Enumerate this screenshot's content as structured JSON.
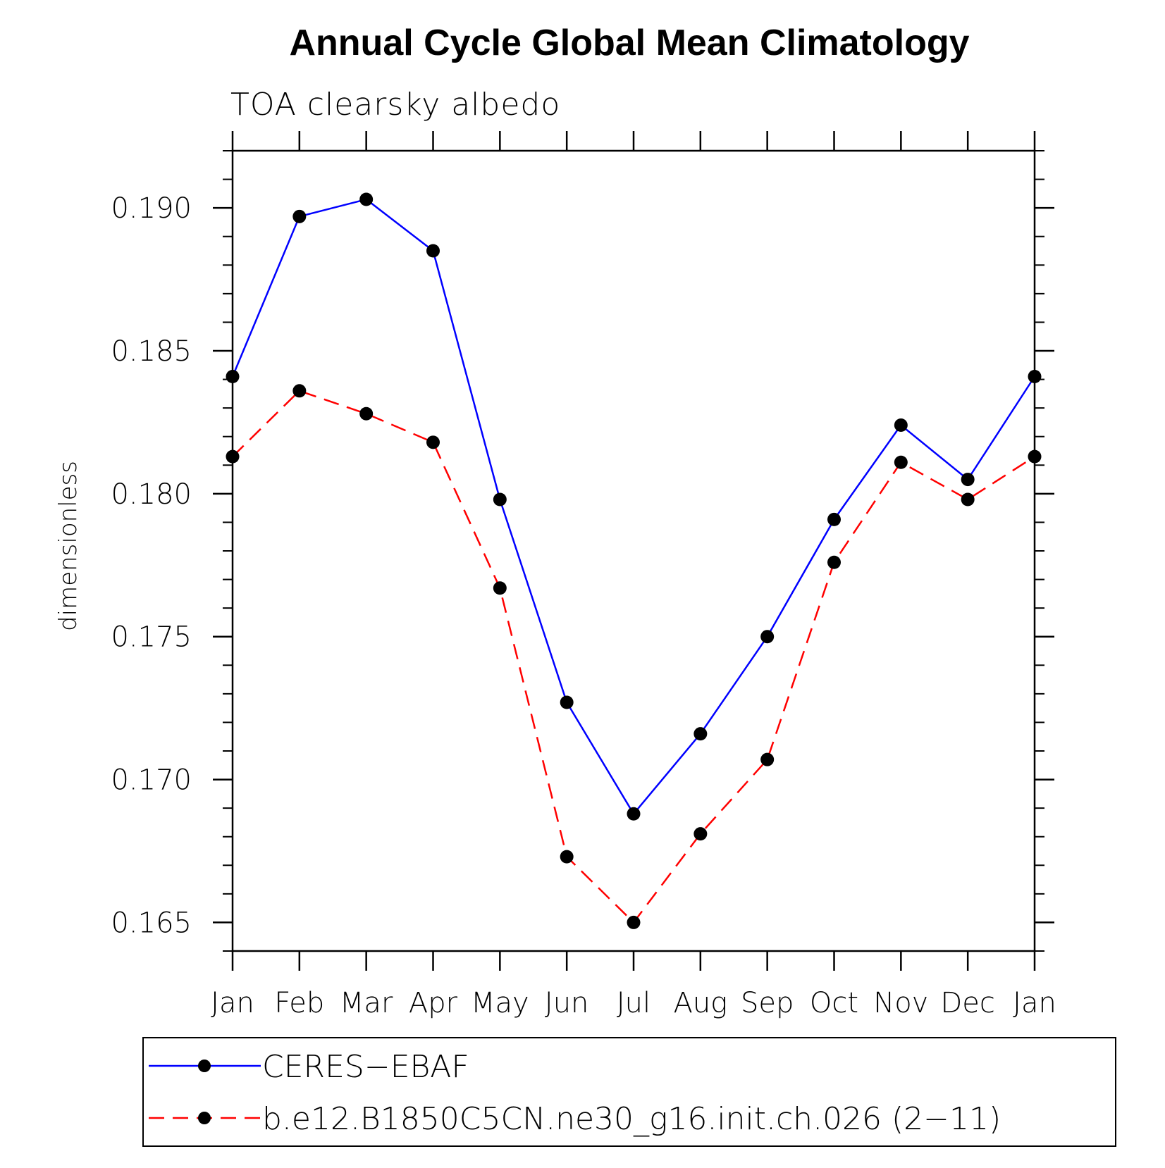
{
  "chart_data": {
    "type": "line",
    "title": "Annual Cycle Global Mean Climatology",
    "subtitle": "TOA clearsky albedo",
    "xlabel": "",
    "ylabel": "dimensionless",
    "categories": [
      "Jan",
      "Feb",
      "Mar",
      "Apr",
      "May",
      "Jun",
      "Jul",
      "Aug",
      "Sep",
      "Oct",
      "Nov",
      "Dec",
      "Jan"
    ],
    "ylim": [
      0.164,
      0.192
    ],
    "yticks": [
      0.165,
      0.17,
      0.175,
      0.18,
      0.185,
      0.19
    ],
    "ytick_labels": [
      "0.165",
      "0.170",
      "0.175",
      "0.180",
      "0.185",
      "0.190"
    ],
    "grid": false,
    "legend_position": "bottom",
    "series": [
      {
        "name": "CERES−EBAF",
        "color": "#0000ff",
        "line_style": "solid",
        "marker": "filled-circle",
        "values": [
          0.1841,
          0.1897,
          0.1903,
          0.1885,
          0.1798,
          0.1727,
          0.1688,
          0.1716,
          0.175,
          0.1791,
          0.1824,
          0.1805,
          0.1841
        ]
      },
      {
        "name": "b.e12.B1850C5CN.ne30_g16.init.ch.026 (2−11)",
        "color": "#ff0000",
        "line_style": "dashed",
        "marker": "filled-circle",
        "values": [
          0.1813,
          0.1836,
          0.1828,
          0.1818,
          0.1767,
          0.1673,
          0.165,
          0.1681,
          0.1707,
          0.1776,
          0.1811,
          0.1798,
          0.1813
        ]
      }
    ]
  }
}
